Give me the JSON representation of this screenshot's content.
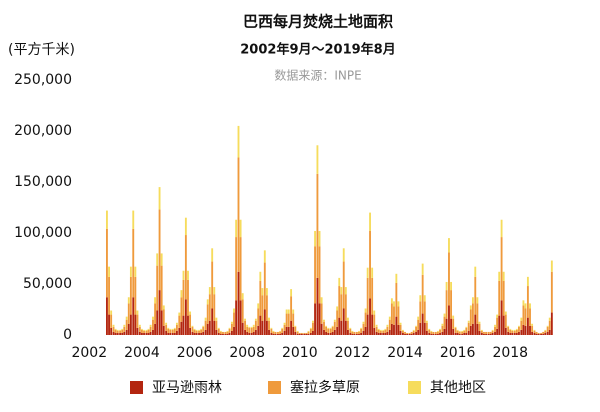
{
  "chart_data": {
    "type": "stacked_bar",
    "title": "巴西每月焚烧土地面积",
    "subtitle": "2002年9月～2019年8月",
    "source": "数据来源：INPE",
    "y_label": "(平方千米)",
    "xlim": [
      2001.95,
      2019.7
    ],
    "xticks": [
      2002,
      2004,
      2006,
      2008,
      2010,
      2012,
      2014,
      2016,
      2018
    ],
    "ylim": [
      0,
      250000
    ],
    "yticks": [
      0,
      {
        "value": 50000,
        "label": "50,000"
      },
      {
        "value": 100000,
        "label": "100,000"
      },
      {
        "value": 150000,
        "label": "150,000"
      },
      {
        "value": 200000,
        "label": "200,000"
      },
      {
        "value": 250000,
        "label": "250,000"
      }
    ],
    "grid": false,
    "legend": "bottom",
    "x": [
      2002.67,
      2002.75,
      2002.83,
      2002.92,
      2003,
      2003.08,
      2003.17,
      2003.25,
      2003.33,
      2003.42,
      2003.5,
      2003.58,
      2003.67,
      2003.75,
      2003.83,
      2003.92,
      2004,
      2004.08,
      2004.17,
      2004.25,
      2004.33,
      2004.42,
      2004.5,
      2004.58,
      2004.67,
      2004.75,
      2004.83,
      2004.92,
      2005,
      2005.08,
      2005.17,
      2005.25,
      2005.33,
      2005.42,
      2005.5,
      2005.58,
      2005.67,
      2005.75,
      2005.83,
      2005.92,
      2006,
      2006.08,
      2006.17,
      2006.25,
      2006.33,
      2006.42,
      2006.5,
      2006.58,
      2006.67,
      2006.75,
      2006.83,
      2006.92,
      2007,
      2007.08,
      2007.17,
      2007.25,
      2007.33,
      2007.42,
      2007.5,
      2007.58,
      2007.67,
      2007.75,
      2007.83,
      2007.92,
      2008,
      2008.08,
      2008.17,
      2008.25,
      2008.33,
      2008.42,
      2008.5,
      2008.58,
      2008.67,
      2008.75,
      2008.83,
      2008.92,
      2009,
      2009.08,
      2009.17,
      2009.25,
      2009.33,
      2009.42,
      2009.5,
      2009.58,
      2009.67,
      2009.75,
      2009.83,
      2009.92,
      2010,
      2010.08,
      2010.17,
      2010.25,
      2010.33,
      2010.42,
      2010.5,
      2010.58,
      2010.67,
      2010.75,
      2010.83,
      2010.92,
      2011,
      2011.08,
      2011.17,
      2011.25,
      2011.33,
      2011.42,
      2011.5,
      2011.58,
      2011.67,
      2011.75,
      2011.83,
      2011.92,
      2012,
      2012.08,
      2012.17,
      2012.25,
      2012.33,
      2012.42,
      2012.5,
      2012.58,
      2012.67,
      2012.75,
      2012.83,
      2012.92,
      2013,
      2013.08,
      2013.17,
      2013.25,
      2013.33,
      2013.42,
      2013.5,
      2013.58,
      2013.67,
      2013.75,
      2013.83,
      2013.92,
      2014,
      2014.08,
      2014.17,
      2014.25,
      2014.33,
      2014.42,
      2014.5,
      2014.58,
      2014.67,
      2014.75,
      2014.83,
      2014.92,
      2015,
      2015.08,
      2015.17,
      2015.25,
      2015.33,
      2015.42,
      2015.5,
      2015.58,
      2015.67,
      2015.75,
      2015.83,
      2015.92,
      2016,
      2016.08,
      2016.17,
      2016.25,
      2016.33,
      2016.42,
      2016.5,
      2016.58,
      2016.67,
      2016.75,
      2016.83,
      2016.92,
      2017,
      2017.08,
      2017.17,
      2017.25,
      2017.33,
      2017.42,
      2017.5,
      2017.58,
      2017.67,
      2017.75,
      2017.83,
      2017.92,
      2018,
      2018.08,
      2018.17,
      2018.25,
      2018.33,
      2018.42,
      2018.5,
      2018.58,
      2018.67,
      2018.75,
      2018.83,
      2018.92,
      2019,
      2019.08,
      2019.17,
      2019.25,
      2019.33,
      2019.42,
      2019.5,
      2019.58
    ],
    "series": [
      {
        "name": "亚马逊雨林",
        "color": "#b3250f",
        "values": [
          37000,
          20000,
          7000,
          3000,
          2000,
          2000,
          2000,
          2000,
          3000,
          5000,
          11000,
          20000,
          37000,
          20000,
          7000,
          3000,
          2000,
          2000,
          2000,
          2000,
          3000,
          5000,
          11000,
          24000,
          44000,
          24000,
          9000,
          4000,
          2000,
          2000,
          2000,
          2000,
          4000,
          7000,
          13000,
          19000,
          35000,
          19000,
          7000,
          3000,
          2000,
          2000,
          2000,
          2000,
          3000,
          5000,
          11000,
          14000,
          26000,
          14000,
          5000,
          2000,
          1000,
          1000,
          1000,
          1000,
          2000,
          4000,
          8000,
          34000,
          62000,
          34000,
          12000,
          5000,
          3000,
          2000,
          2000,
          3000,
          5000,
          9000,
          19000,
          14000,
          25000,
          14000,
          5000,
          2000,
          1000,
          1000,
          1000,
          1000,
          2000,
          4000,
          8000,
          8000,
          14000,
          8000,
          3000,
          1000,
          1000,
          1000,
          1000,
          1000,
          1000,
          2000,
          4000,
          31000,
          56000,
          31000,
          11000,
          5000,
          3000,
          2000,
          2000,
          3000,
          5000,
          8000,
          17000,
          14000,
          26000,
          14000,
          5000,
          2000,
          1000,
          1000,
          1000,
          1000,
          2000,
          4000,
          8000,
          20000,
          36000,
          20000,
          7000,
          3000,
          2000,
          2000,
          2000,
          2000,
          3000,
          5000,
          11000,
          10000,
          18000,
          10000,
          4000,
          2000,
          1000,
          1000,
          1000,
          1000,
          2000,
          3000,
          5000,
          12000,
          21000,
          12000,
          4000,
          2000,
          1000,
          1000,
          1000,
          1000,
          2000,
          3000,
          6000,
          16000,
          29000,
          16000,
          6000,
          2000,
          2000,
          1000,
          1000,
          2000,
          2000,
          4000,
          9000,
          11000,
          20000,
          11000,
          4000,
          2000,
          1000,
          1000,
          1000,
          1000,
          2000,
          3000,
          6000,
          19000,
          34000,
          19000,
          7000,
          3000,
          2000,
          2000,
          2000,
          2000,
          3000,
          5000,
          10000,
          9000,
          17000,
          9000,
          3000,
          2000,
          1000,
          1000,
          1000,
          1000,
          2000,
          3000,
          5000,
          22000
        ]
      },
      {
        "name": "塞拉多草原",
        "color": "#ef9a3c",
        "values": [
          67000,
          37000,
          13000,
          5000,
          3000,
          2000,
          2000,
          3000,
          5000,
          10000,
          20000,
          37000,
          67000,
          37000,
          13000,
          5000,
          3000,
          2000,
          2000,
          3000,
          5000,
          10000,
          20000,
          44000,
          79000,
          44000,
          16000,
          6000,
          4000,
          3000,
          3000,
          4000,
          6000,
          12000,
          24000,
          35000,
          63000,
          35000,
          13000,
          5000,
          3000,
          2000,
          2000,
          3000,
          5000,
          9000,
          19000,
          26000,
          46000,
          26000,
          9000,
          4000,
          2000,
          2000,
          2000,
          2000,
          4000,
          7000,
          14000,
          62000,
          112000,
          62000,
          23000,
          9000,
          5000,
          5000,
          5000,
          5000,
          9000,
          17000,
          34000,
          25000,
          46000,
          25000,
          9000,
          4000,
          2000,
          2000,
          2000,
          2000,
          4000,
          6000,
          13000,
          13000,
          24000,
          13000,
          5000,
          2000,
          1000,
          1000,
          1000,
          1000,
          2000,
          4000,
          8000,
          56000,
          102000,
          56000,
          20000,
          8000,
          5000,
          4000,
          4000,
          5000,
          8000,
          16000,
          31000,
          26000,
          46000,
          26000,
          9000,
          4000,
          2000,
          2000,
          2000,
          2000,
          4000,
          7000,
          14000,
          36000,
          66000,
          36000,
          13000,
          5000,
          3000,
          2000,
          2000,
          3000,
          5000,
          10000,
          20000,
          18000,
          33000,
          18000,
          6000,
          2000,
          2000,
          1000,
          1000,
          2000,
          2000,
          5000,
          10000,
          21000,
          38000,
          21000,
          8000,
          3000,
          2000,
          2000,
          2000,
          2000,
          3000,
          6000,
          12000,
          28000,
          52000,
          28000,
          10000,
          5000,
          2000,
          2000,
          2000,
          2000,
          5000,
          8000,
          16000,
          20000,
          37000,
          20000,
          7000,
          2000,
          2000,
          2000,
          2000,
          2000,
          2000,
          5000,
          11000,
          34000,
          62000,
          34000,
          13000,
          5000,
          3000,
          2000,
          2000,
          3000,
          5000,
          9000,
          19000,
          17000,
          31000,
          17000,
          6000,
          2000,
          2000,
          1000,
          1000,
          2000,
          2000,
          5000,
          9000,
          40000
        ]
      },
      {
        "name": "其他地区",
        "color": "#f6dc5c",
        "values": [
          18000,
          10000,
          4000,
          2000,
          1000,
          1000,
          1000,
          1000,
          2000,
          3000,
          6000,
          10000,
          18000,
          10000,
          4000,
          2000,
          1000,
          1000,
          1000,
          1000,
          2000,
          3000,
          6000,
          12000,
          22000,
          12000,
          4000,
          2000,
          1000,
          1000,
          1000,
          1000,
          2000,
          3000,
          7000,
          9000,
          17000,
          9000,
          3000,
          1000,
          1000,
          1000,
          1000,
          1000,
          1000,
          3000,
          5000,
          7000,
          13000,
          7000,
          3000,
          1000,
          1000,
          0,
          0,
          1000,
          1000,
          2000,
          4000,
          17000,
          31000,
          17000,
          6000,
          2000,
          2000,
          1000,
          1000,
          2000,
          2000,
          5000,
          9000,
          7000,
          12000,
          7000,
          3000,
          1000,
          1000,
          0,
          0,
          1000,
          1000,
          2000,
          4000,
          4000,
          7000,
          4000,
          1000,
          1000,
          0,
          0,
          0,
          0,
          1000,
          1000,
          2000,
          15000,
          28000,
          15000,
          6000,
          2000,
          1000,
          1000,
          1000,
          1000,
          2000,
          4000,
          8000,
          7000,
          13000,
          7000,
          3000,
          1000,
          1000,
          0,
          0,
          1000,
          1000,
          2000,
          4000,
          10000,
          18000,
          10000,
          4000,
          2000,
          1000,
          1000,
          1000,
          1000,
          2000,
          3000,
          5000,
          5000,
          9000,
          5000,
          2000,
          1000,
          0,
          0,
          0,
          0,
          1000,
          1000,
          3000,
          6000,
          11000,
          6000,
          2000,
          1000,
          1000,
          0,
          0,
          1000,
          1000,
          2000,
          3000,
          8000,
          14000,
          8000,
          3000,
          1000,
          1000,
          1000,
          1000,
          1000,
          1000,
          2000,
          4000,
          6000,
          10000,
          6000,
          2000,
          1000,
          0,
          0,
          0,
          0,
          1000,
          2000,
          3000,
          9000,
          17000,
          9000,
          3000,
          1000,
          1000,
          1000,
          1000,
          1000,
          1000,
          3000,
          5000,
          5000,
          9000,
          5000,
          2000,
          1000,
          0,
          0,
          0,
          0,
          1000,
          1000,
          3000,
          11000
        ]
      }
    ]
  }
}
